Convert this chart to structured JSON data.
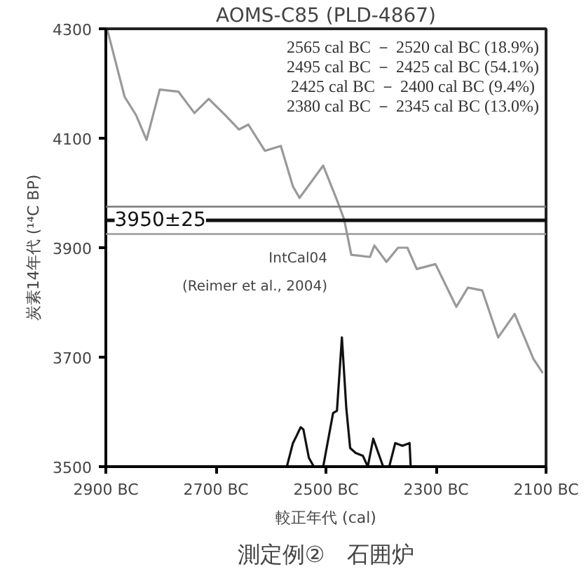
{
  "chart_data": {
    "type": "line",
    "title": "AOMS-C85 (PLD-4867)",
    "subtitle": "測定例②　石囲炉",
    "xlabel": "較正年代 (cal)",
    "ylabel": "炭素14年代 (¹⁴C BP)",
    "xlim": [
      -2900,
      -2100
    ],
    "ylim": [
      3500,
      4300
    ],
    "xticks": [
      {
        "value": -2900,
        "label": "2900 BC"
      },
      {
        "value": -2700,
        "label": "2700 BC"
      },
      {
        "value": -2500,
        "label": "2500 BC"
      },
      {
        "value": -2300,
        "label": "2300 BC"
      },
      {
        "value": -2100,
        "label": "2100 BC"
      }
    ],
    "yticks": [
      3500,
      3700,
      3900,
      4100,
      4300
    ],
    "grid": false,
    "marker": "none",
    "series": [
      {
        "color": "#999999",
        "x": [
          -2897,
          -2866,
          -2845,
          -2826,
          -2802,
          -2768,
          -2739,
          -2713,
          -2683,
          -2658,
          -2641,
          -2611,
          -2582,
          -2560,
          -2548,
          -2505,
          -2480,
          -2467,
          -2454,
          -2420,
          -2412,
          -2390,
          -2369,
          -2352,
          -2335,
          -2301,
          -2263,
          -2242,
          -2216,
          -2187,
          -2157,
          -2123,
          -2106
        ],
        "values": [
          4297,
          4176,
          4142,
          4097,
          4189,
          4185,
          4146,
          4172,
          4142,
          4116,
          4125,
          4077,
          4086,
          4012,
          3991,
          4050,
          3987,
          3952,
          3887,
          3883,
          3904,
          3874,
          3900,
          3900,
          3861,
          3870,
          3792,
          3827,
          3822,
          3736,
          3779,
          3697,
          3671
        ]
      },
      {
        "color": "#111111",
        "x": [
          -2571,
          -2560,
          -2554,
          -2546,
          -2541,
          -2531,
          -2522,
          -2505,
          -2487,
          -2480,
          -2471,
          -2463,
          -2456,
          -2446,
          -2433,
          -2424,
          -2414,
          -2396,
          -2385,
          -2374,
          -2361,
          -2348,
          -2346
        ],
        "values": [
          3500,
          3543,
          3555,
          3572,
          3568,
          3516,
          3500,
          3500,
          3598,
          3602,
          3736,
          3607,
          3534,
          3525,
          3520,
          3500,
          3551,
          3500,
          3500,
          3543,
          3538,
          3543,
          3500
        ]
      }
    ],
    "ref_lines": [
      {
        "axis": "y",
        "value": 3975,
        "label": null,
        "color": "#777777"
      },
      {
        "axis": "y",
        "value": 3950,
        "label": "3950±25",
        "color": "#111111"
      },
      {
        "axis": "y",
        "value": 3925,
        "label": null,
        "color": "#999999"
      }
    ],
    "annotations": [
      "2565 cal BC － 2520 cal BC (18.9%)",
      "2495 cal BC － 2425 cal BC (54.1%)",
      "2425 cal BC － 2400 cal BC  (9.4%)",
      "2380 cal BC － 2345 cal BC (13.0%)",
      "IntCal04",
      "(Reimer et al., 2004)"
    ]
  }
}
